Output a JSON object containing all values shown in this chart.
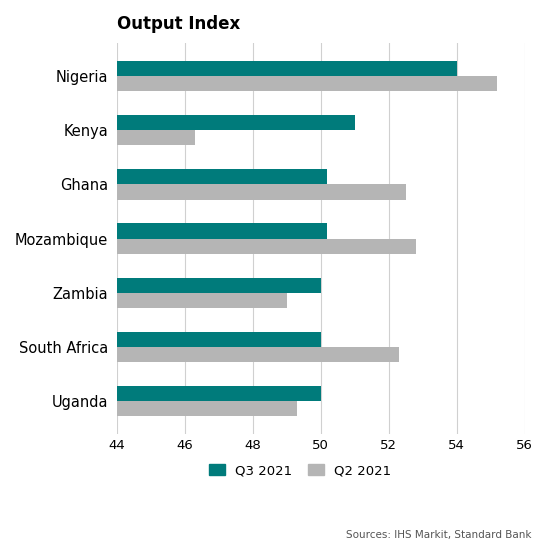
{
  "title": "Output Index",
  "categories": [
    "Nigeria",
    "Kenya",
    "Ghana",
    "Mozambique",
    "Zambia",
    "South Africa",
    "Uganda"
  ],
  "q3_2021": [
    54.0,
    51.0,
    50.2,
    50.2,
    50.0,
    50.0,
    50.0
  ],
  "q2_2021": [
    55.2,
    46.3,
    52.5,
    52.8,
    49.0,
    52.3,
    49.3
  ],
  "q3_color": "#007b7b",
  "q2_color": "#b5b5b5",
  "xlim": [
    44,
    56
  ],
  "xticks": [
    44,
    46,
    48,
    50,
    52,
    54,
    56
  ],
  "bar_height": 0.28,
  "legend_labels": [
    "Q3 2021",
    "Q2 2021"
  ],
  "source_text": "Sources: IHS Markit, Standard Bank",
  "background_color": "#ffffff",
  "title_fontsize": 12,
  "tick_fontsize": 9.5,
  "label_fontsize": 10.5
}
